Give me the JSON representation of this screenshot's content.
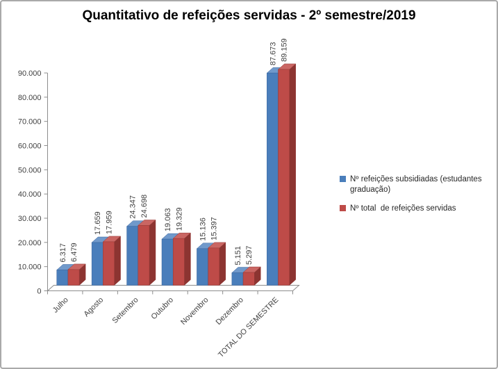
{
  "window": {
    "background": "#ffffff",
    "border_color": "#a9a9a9"
  },
  "chart_data": {
    "type": "bar",
    "effect_3d": true,
    "title": "Quantitativo de refeições servidas - 2º semestre/2019",
    "categories": [
      "Julho",
      "Agosto",
      "Setembro",
      "Outubro",
      "Novembro",
      "Dezembro",
      "TOTAL DO SEMESTRE"
    ],
    "series": [
      {
        "name": "Nº refeições subsidiadas (estudantes graduação)",
        "color": "#4a7ebb",
        "color_top": "#7099cb",
        "color_side": "#2e5a8f",
        "color_edge": "#39649c",
        "values": [
          6317,
          17659,
          24347,
          19063,
          15136,
          5151,
          87673
        ],
        "labels": [
          "6.317",
          "17.659",
          "24.347",
          "19.063",
          "15.136",
          "5.151",
          "87.673"
        ]
      },
      {
        "name": "Nº total  de refeições servidas",
        "color": "#be4b48",
        "color_top": "#ca6663",
        "color_side": "#8c3431",
        "color_edge": "#953a37",
        "values": [
          6479,
          17959,
          24698,
          19329,
          15397,
          5297,
          89159
        ],
        "labels": [
          "6.479",
          "17.959",
          "24.698",
          "19.329",
          "15.397",
          "5.297",
          "89.159"
        ]
      }
    ],
    "value_axis": {
      "min": 0,
      "max": 90000,
      "step": 10000,
      "tick_labels": [
        "0",
        "10.000",
        "20.000",
        "30.000",
        "40.000",
        "50.000",
        "60.000",
        "70.000",
        "80.000",
        "90.000"
      ]
    },
    "legend_position": "right",
    "grid": false,
    "data_labels_rotation": -90,
    "category_labels_rotation": -45,
    "text_color": "#404040",
    "axis_color": "#8c8c8c"
  }
}
